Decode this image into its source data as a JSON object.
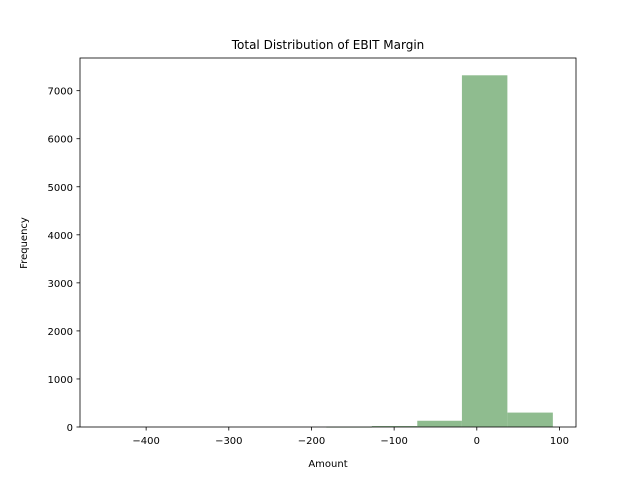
{
  "chart_data": {
    "type": "bar",
    "title": "Total Distribution of EBIT Margin",
    "xlabel": "Amount",
    "ylabel": "Frequency",
    "xlim": [
      -480,
      120
    ],
    "ylim": [
      0,
      7680
    ],
    "xticks": [
      -400,
      -300,
      -200,
      -100,
      0,
      100
    ],
    "xtick_labels": [
      "−400",
      "−300",
      "−200",
      "−100",
      "0",
      "100"
    ],
    "yticks": [
      0,
      1000,
      2000,
      3000,
      4000,
      5000,
      6000,
      7000
    ],
    "ytick_labels": [
      "0",
      "1000",
      "2000",
      "3000",
      "4000",
      "5000",
      "6000",
      "7000"
    ],
    "bar_color": "#8fbc8f",
    "bins": [
      {
        "start": -182,
        "end": -127,
        "value": 5
      },
      {
        "start": -127,
        "end": -72,
        "value": 20
      },
      {
        "start": -72,
        "end": -18,
        "value": 130
      },
      {
        "start": -18,
        "end": 37,
        "value": 7320
      },
      {
        "start": 37,
        "end": 92,
        "value": 300
      }
    ]
  }
}
